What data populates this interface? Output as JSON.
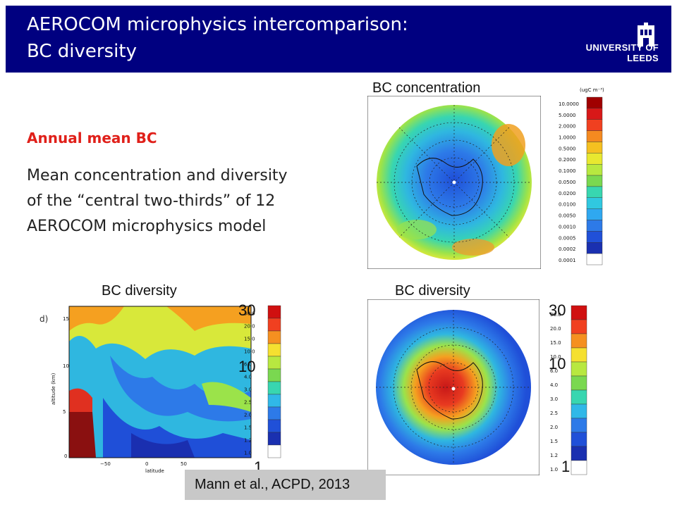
{
  "header": {
    "title_line1": "AEROCOM microphysics intercomparison:",
    "title_line2": "BC diversity",
    "logo_text": "UNIVERSITY OF LEEDS",
    "bg_color": "#000080"
  },
  "content": {
    "subheading": "Annual mean BC",
    "description": "Mean concentration and diversity of the “central two-thirds” of 12 AEROCOM microphysics model"
  },
  "figures": {
    "concentration": {
      "title": "BC concentration",
      "unit": "(ugC m⁻³)",
      "levels": [
        "10.0000",
        "5.0000",
        "2.0000",
        "1.0000",
        "0.5000",
        "0.2000",
        "0.1000",
        "0.0500",
        "0.0200",
        "0.0100",
        "0.0050",
        "0.0010",
        "0.0005",
        "0.0002",
        "0.0001"
      ]
    },
    "zonal": {
      "title": "BC diversity",
      "panel_letter": "d)",
      "ylabel": "altitude (km)",
      "xlabel": "latitude",
      "yticks": [
        "15",
        "10",
        "5",
        "0"
      ],
      "xticks": [
        "−50",
        "0",
        "50"
      ],
      "levels": [
        "30.0",
        "20.0",
        "15.0",
        "10.0",
        "6.0",
        "4.0",
        "3.0",
        "2.5",
        "2.0",
        "1.5",
        "1.2",
        "1.0"
      ],
      "scale_top": "30",
      "scale_mid": "10",
      "scale_bot": "1"
    },
    "polar_diversity": {
      "title": "BC diversity",
      "levels": [
        "30.0",
        "20.0",
        "15.0",
        "10.0",
        "6.0",
        "4.0",
        "3.0",
        "2.5",
        "2.0",
        "1.5",
        "1.2",
        "1.0"
      ],
      "scale_top": "30",
      "scale_mid": "10",
      "scale_bot": "1"
    }
  },
  "citation": "Mann et al., ACPD, 2013"
}
